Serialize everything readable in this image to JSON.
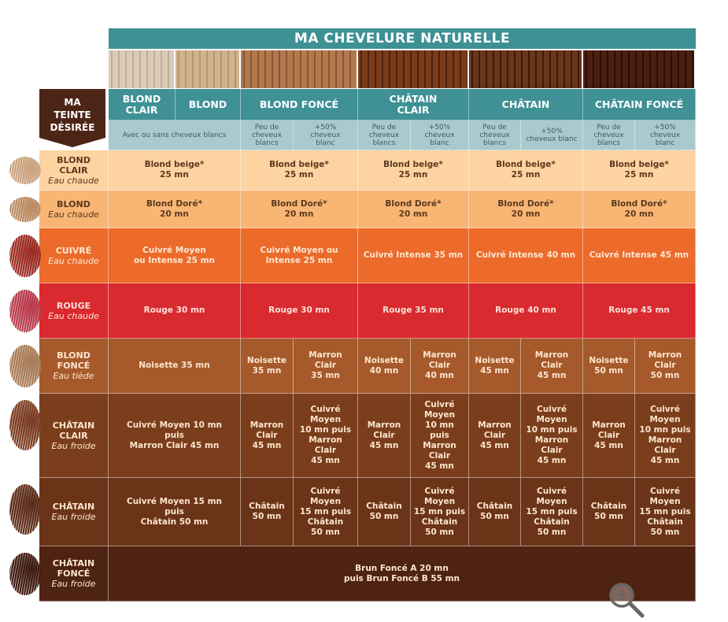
{
  "title": "MA CHEVELURE NATURELLE",
  "corner_label": "MA\nTEINTE\nDÉSIRÉE",
  "header": [
    {
      "label": "BLOND\nCLAIR",
      "span": 1,
      "photo": [
        "#d9cbb8",
        "#c4ad92"
      ]
    },
    {
      "label": "BLOND",
      "span": 1,
      "photo": [
        "#d0b290",
        "#b89570"
      ]
    },
    {
      "label": "BLOND FONCÉ",
      "span": 2,
      "photo": [
        "#b07a4e",
        "#8a5530"
      ]
    },
    {
      "label": "CHÂTAIN\nCLAIR",
      "span": 2,
      "photo": [
        "#7a3c1a",
        "#4e220e"
      ]
    },
    {
      "label": "CHÂTAIN",
      "span": 2,
      "photo": [
        "#6a3519",
        "#3e1a0b"
      ]
    },
    {
      "label": "CHÂTAIN FONCÉ",
      "span": 2,
      "photo": [
        "#4a2010",
        "#2a0f06"
      ]
    }
  ],
  "subheader": [
    {
      "label": "Avec ou sans cheveux blancs",
      "span": 2
    },
    {
      "label": "Peu de\ncheveux\nblancs",
      "span": 1
    },
    {
      "label": "+50%\ncheveux\nblanc",
      "span": 1
    },
    {
      "label": "Peu de\ncheveux\nblancs",
      "span": 1
    },
    {
      "label": "+50%\ncheveux\nblanc",
      "span": 1
    },
    {
      "label": "Peu de\ncheveux\nblancs",
      "span": 1
    },
    {
      "label": "+50%\ncheveux blanc",
      "span": 1
    },
    {
      "label": "Peu de\ncheveux\nblancs",
      "span": 1
    },
    {
      "label": "+50%\ncheveux\nblanc",
      "span": 1
    }
  ],
  "rows": [
    {
      "label": "BLOND\nCLAIR",
      "note": "Eau chaude",
      "bg": "#fcd3a1",
      "fg": "#5b3a1e",
      "swatch": "#c9a27c",
      "cells": [
        {
          "text": "Blond beige*\n25 mn",
          "span": 2
        },
        {
          "text": "Blond beige*\n25 mn",
          "span": 2
        },
        {
          "text": "Blond beige*\n25 mn",
          "span": 2
        },
        {
          "text": "Blond beige*\n25 mn",
          "span": 2
        },
        {
          "text": "Blond beige*\n25 mn",
          "span": 2
        }
      ]
    },
    {
      "label": "BLOND",
      "note": "Eau chaude",
      "bg": "#f8b574",
      "fg": "#5b3a1e",
      "swatch": "#b98a5e",
      "cells": [
        {
          "text": "Blond Doré*\n20 mn",
          "span": 2
        },
        {
          "text": "Blond Doré*\n20 mn",
          "span": 2
        },
        {
          "text": "Blond Doré*\n20 mn",
          "span": 2
        },
        {
          "text": "Blond Doré*\n20 mn",
          "span": 2
        },
        {
          "text": "Blond Doré*\n20 mn",
          "span": 2
        }
      ]
    },
    {
      "label": "CUIVRÉ",
      "note": "Eau chaude",
      "bg": "#ec6b2b",
      "fg": "#fde6d2",
      "swatch": "#9a2a22",
      "cells": [
        {
          "text": "Cuivré Moyen\nou Intense 25 mn",
          "span": 2
        },
        {
          "text": "Cuivré Moyen ou\nIntense 25 mn",
          "span": 2
        },
        {
          "text": "Cuivré Intense 35 mn",
          "span": 2
        },
        {
          "text": "Cuivré Intense 40 mn",
          "span": 2
        },
        {
          "text": "Cuivré Intense 45 mn",
          "span": 2
        }
      ]
    },
    {
      "label": "ROUGE",
      "note": "Eau chaude",
      "bg": "#d82a2f",
      "fg": "#fde0d8",
      "swatch": "#b83a4a",
      "cells": [
        {
          "text": "Rouge 30 mn",
          "span": 2
        },
        {
          "text": "Rouge 30 mn",
          "span": 2
        },
        {
          "text": "Rouge 35 mn",
          "span": 2
        },
        {
          "text": "Rouge 40 mn",
          "span": 2
        },
        {
          "text": "Rouge 45 mn",
          "span": 2
        }
      ]
    },
    {
      "label": "BLOND\nFONCÉ",
      "note": "Eau tiède",
      "bg": "#a65a2b",
      "fg": "#fde6cf",
      "swatch": "#a87a55",
      "cells": [
        {
          "text": "Noisette 35 mn",
          "span": 2
        },
        {
          "text": "Noisette\n35 mn",
          "span": 1
        },
        {
          "text": "Marron\nClair\n35 mn",
          "span": 1
        },
        {
          "text": "Noisette\n40 mn",
          "span": 1
        },
        {
          "text": "Marron\nClair\n40 mn",
          "span": 1
        },
        {
          "text": "Noisette\n45 mn",
          "span": 1
        },
        {
          "text": "Marron\nClair\n45 mn",
          "span": 1
        },
        {
          "text": "Noisette\n50 mn",
          "span": 1
        },
        {
          "text": "Marron\nClair\n50 mn",
          "span": 1
        }
      ]
    },
    {
      "label": "CHÂTAIN\nCLAIR",
      "note": "Eau froide",
      "bg": "#7b3e1c",
      "fg": "#fde6cf",
      "swatch": "#7a3a20",
      "cells": [
        {
          "text": "Cuivré Moyen 10 mn\npuis\nMarron Clair 45 mn",
          "span": 2
        },
        {
          "text": "Marron\nClair\n45 mn",
          "span": 1
        },
        {
          "text": "Cuivré\nMoyen\n10 mn puis\nMarron\nClair\n45 mn",
          "span": 1
        },
        {
          "text": "Marron\nClair\n45 mn",
          "span": 1
        },
        {
          "text": "Cuivré\nMoyen\n10 mn\npuis\nMarron\nClair\n45 mn",
          "span": 1
        },
        {
          "text": "Marron\nClair\n45 mn",
          "span": 1
        },
        {
          "text": "Cuivré\nMoyen\n10 mn puis\nMarron\nClair\n45 mn",
          "span": 1
        },
        {
          "text": "Marron\nClair\n45 mn",
          "span": 1
        },
        {
          "text": "Cuivré\nMoyen\n10 mn puis\nMarron\nClair\n45 mn",
          "span": 1
        }
      ]
    },
    {
      "label": "CHÂTAIN",
      "note": "Eau froide",
      "bg": "#6b3418",
      "fg": "#fde6cf",
      "swatch": "#5a2a16",
      "cells": [
        {
          "text": "Cuivré Moyen 15 mn\npuis\nChâtain 50 mn",
          "span": 2
        },
        {
          "text": "Châtain\n50 mn",
          "span": 1
        },
        {
          "text": "Cuivré\nMoyen\n15 mn puis\nChâtain\n50 mn",
          "span": 1
        },
        {
          "text": "Châtain\n50 mn",
          "span": 1
        },
        {
          "text": "Cuivré\nMoyen\n15 mn puis\nChâtain\n50 mn",
          "span": 1
        },
        {
          "text": "Châtain\n50 mn",
          "span": 1
        },
        {
          "text": "Cuivré\nMoyen\n15 mn puis\nChâtain\n50 mn",
          "span": 1
        },
        {
          "text": "Châtain\n50 mn",
          "span": 1
        },
        {
          "text": "Cuivré\nMoyen\n15 mn puis\nChâtain\n50 mn",
          "span": 1
        }
      ]
    },
    {
      "label": "CHÂTAIN\nFONCÉ",
      "note": "Eau froide",
      "bg": "#4f2312",
      "fg": "#fde6cf",
      "swatch": "#3e1a0e",
      "cells": [
        {
          "text": "Brun Foncé A 20 mn\npuis Brun Foncé B 55 mn",
          "span": 10
        }
      ]
    }
  ],
  "zoom_icon": "zoom-in-icon"
}
